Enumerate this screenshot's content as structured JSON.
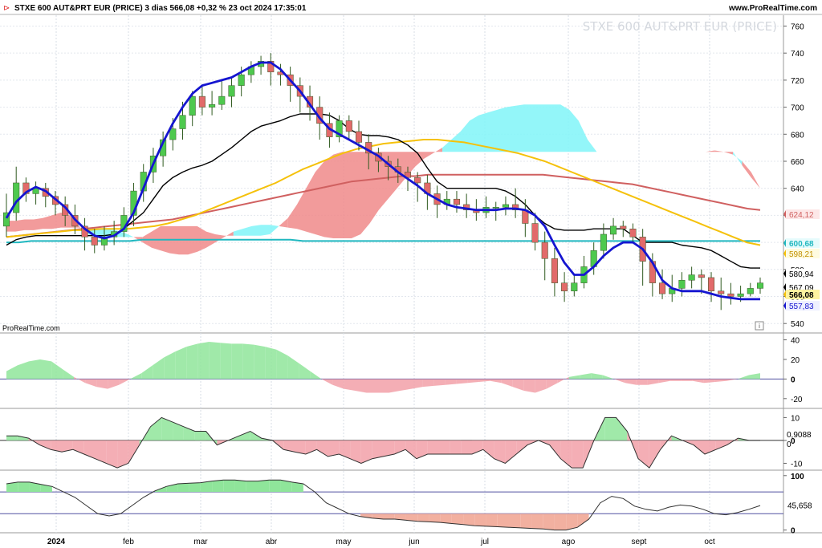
{
  "header": {
    "title": "STXE 600 AUT&PRT EUR (PRICE) 3 dias 566,08 +0,32 % 23 oct 2024 17:35:01",
    "site": "www.ProRealTime.com",
    "watermark": "STXE 600 AUT&PRT EUR (PRICE)",
    "brand": "ProRealTime.com"
  },
  "colors": {
    "up": "#4ec94e",
    "down": "#e26a6a",
    "wick": "#2f5a1f",
    "ma_blue": "#1515d0",
    "ma_black": "#000000",
    "ma_yellow": "#f5c10a",
    "ma_red": "#d06060",
    "cyan_line": "#20b8c0",
    "cloud_cyan": "#80f4f8",
    "cloud_red": "#f08a8a"
  },
  "chart_data": [
    {
      "type": "candlestick",
      "title": "STXE 600 AUT&PRT EUR (PRICE)",
      "timeframe": "3 dias",
      "x_labels": [
        "2024",
        "feb",
        "mar",
        "abr",
        "may",
        "jun",
        "jul",
        "ago",
        "sept",
        "oct"
      ],
      "ylim": [
        533,
        768
      ],
      "y_ticks": [
        540,
        560,
        580,
        600,
        620,
        640,
        660,
        680,
        700,
        720,
        740,
        760
      ],
      "close_badges": [
        {
          "label": "624,12",
          "value": 624.12,
          "color": "#d06060"
        },
        {
          "label": "600,68",
          "value": 600.68,
          "color": "#20b8c0"
        },
        {
          "label": "598,21",
          "value": 598.21,
          "color": "#f5c10a"
        },
        {
          "label": "580,94",
          "value": 580.94,
          "color": "#000000"
        },
        {
          "label": "567,09",
          "value": 567.09,
          "color": "#000000"
        },
        {
          "label": "566,08",
          "value": 566.08,
          "color": "#f5c10a"
        },
        {
          "label": "557,83",
          "value": 557.83,
          "color": "#1515d0"
        }
      ],
      "candles": [
        [
          612,
          622,
          604,
          636
        ],
        [
          622,
          644,
          616,
          656
        ],
        [
          644,
          636,
          630,
          648
        ],
        [
          636,
          640,
          628,
          645
        ],
        [
          640,
          634,
          626,
          644
        ],
        [
          634,
          628,
          620,
          638
        ],
        [
          628,
          620,
          612,
          634
        ],
        [
          620,
          612,
          606,
          628
        ],
        [
          612,
          604,
          594,
          618
        ],
        [
          604,
          598,
          592,
          610
        ],
        [
          598,
          604,
          594,
          612
        ],
        [
          604,
          608,
          598,
          616
        ],
        [
          608,
          620,
          604,
          626
        ],
        [
          620,
          638,
          612,
          644
        ],
        [
          638,
          652,
          630,
          658
        ],
        [
          652,
          664,
          644,
          670
        ],
        [
          664,
          676,
          656,
          682
        ],
        [
          676,
          684,
          668,
          692
        ],
        [
          684,
          694,
          676,
          704
        ],
        [
          694,
          708,
          686,
          712
        ],
        [
          708,
          700,
          694,
          716
        ],
        [
          700,
          702,
          694,
          712
        ],
        [
          702,
          708,
          698,
          720
        ],
        [
          708,
          716,
          700,
          722
        ],
        [
          716,
          724,
          708,
          730
        ],
        [
          724,
          730,
          718,
          734
        ],
        [
          730,
          734,
          724,
          738
        ],
        [
          734,
          726,
          716,
          740
        ],
        [
          726,
          724,
          716,
          732
        ],
        [
          724,
          716,
          704,
          730
        ],
        [
          716,
          708,
          696,
          722
        ],
        [
          708,
          700,
          690,
          716
        ],
        [
          700,
          688,
          676,
          708
        ],
        [
          688,
          678,
          670,
          696
        ],
        [
          678,
          690,
          674,
          694
        ],
        [
          690,
          682,
          676,
          694
        ],
        [
          682,
          674,
          668,
          690
        ],
        [
          674,
          666,
          654,
          680
        ],
        [
          666,
          660,
          652,
          670
        ],
        [
          660,
          656,
          646,
          664
        ],
        [
          656,
          652,
          644,
          662
        ],
        [
          652,
          648,
          638,
          656
        ],
        [
          648,
          644,
          630,
          652
        ],
        [
          644,
          636,
          624,
          650
        ],
        [
          636,
          628,
          618,
          642
        ],
        [
          628,
          632,
          624,
          638
        ],
        [
          632,
          628,
          622,
          638
        ],
        [
          628,
          624,
          618,
          636
        ],
        [
          624,
          622,
          616,
          632
        ],
        [
          622,
          626,
          618,
          634
        ],
        [
          626,
          626,
          616,
          630
        ],
        [
          626,
          628,
          620,
          634
        ],
        [
          628,
          624,
          618,
          640
        ],
        [
          624,
          614,
          604,
          632
        ],
        [
          614,
          600,
          594,
          622
        ],
        [
          600,
          588,
          572,
          608
        ],
        [
          588,
          570,
          560,
          596
        ],
        [
          570,
          564,
          556,
          578
        ],
        [
          564,
          570,
          560,
          576
        ],
        [
          570,
          582,
          566,
          590
        ],
        [
          582,
          594,
          576,
          600
        ],
        [
          594,
          606,
          588,
          614
        ],
        [
          606,
          612,
          602,
          618
        ],
        [
          612,
          610,
          604,
          616
        ],
        [
          610,
          604,
          600,
          614
        ],
        [
          604,
          586,
          568,
          610
        ],
        [
          586,
          570,
          560,
          592
        ],
        [
          570,
          562,
          558,
          580
        ],
        [
          562,
          566,
          556,
          576
        ],
        [
          566,
          572,
          560,
          578
        ],
        [
          572,
          576,
          566,
          582
        ],
        [
          576,
          574,
          562,
          580
        ],
        [
          574,
          564,
          556,
          578
        ],
        [
          564,
          562,
          550,
          574
        ],
        [
          562,
          560,
          554,
          570
        ],
        [
          560,
          562,
          556,
          568
        ],
        [
          562,
          566,
          560,
          570
        ],
        [
          566,
          570,
          562,
          574
        ]
      ],
      "series": [
        {
          "key": "ma_blue",
          "values": [
            618,
            630,
            637,
            641,
            638,
            632,
            626,
            617,
            610,
            605,
            603,
            605,
            610,
            622,
            640,
            658,
            674,
            688,
            700,
            710,
            716,
            718,
            720,
            722,
            726,
            730,
            733,
            733,
            728,
            720,
            712,
            702,
            692,
            684,
            680,
            676,
            672,
            668,
            664,
            658,
            652,
            647,
            642,
            636,
            632,
            628,
            626,
            625,
            624,
            624,
            624,
            625,
            625,
            624,
            620,
            612,
            598,
            585,
            576,
            576,
            582,
            590,
            596,
            600,
            600,
            595,
            585,
            572,
            566,
            564,
            564,
            564,
            562,
            560,
            559,
            558,
            558,
            558
          ]
        },
        {
          "key": "ma_black",
          "values": [
            598,
            602,
            604,
            605,
            605,
            605,
            605,
            605,
            605,
            605,
            605,
            606,
            610,
            616,
            622,
            632,
            642,
            648,
            652,
            655,
            657,
            660,
            665,
            670,
            676,
            682,
            686,
            688,
            690,
            693,
            695,
            695,
            695,
            694,
            690,
            684,
            680,
            679,
            679,
            678,
            676,
            672,
            666,
            655,
            645,
            640,
            640,
            640,
            640,
            640,
            640,
            638,
            634,
            628,
            620,
            614,
            610,
            609,
            609,
            609,
            610,
            610,
            610,
            610,
            605,
            600,
            600,
            600,
            600,
            598,
            597,
            596,
            594,
            590,
            586,
            582,
            581,
            581
          ]
        },
        {
          "key": "ma_yellow",
          "values": [
            604,
            605,
            606,
            607,
            608,
            609,
            609,
            610,
            610,
            610,
            611,
            612,
            614,
            617,
            620,
            624,
            628,
            632,
            636,
            640,
            644,
            649,
            654,
            658,
            662,
            666,
            669,
            671,
            673,
            674,
            675,
            676,
            676,
            675,
            674,
            672,
            670,
            668,
            666,
            663,
            660,
            656,
            652,
            648,
            644,
            640,
            636,
            632,
            628,
            624,
            620,
            616,
            612,
            608,
            604,
            600,
            598
          ]
        },
        {
          "key": "ma_red",
          "values": [
            604,
            605,
            606,
            607,
            608,
            609,
            610,
            611,
            612,
            613,
            614,
            615,
            616,
            617,
            619,
            621,
            623,
            625,
            627,
            629,
            631,
            633,
            635,
            637,
            639,
            641,
            643,
            645,
            646,
            647,
            648,
            649,
            649,
            650,
            650,
            650,
            650,
            650,
            650,
            650,
            650,
            650,
            650,
            649,
            648,
            647,
            646,
            645,
            644,
            643,
            641,
            639,
            637,
            635,
            633,
            631,
            629,
            627,
            625,
            624
          ]
        },
        {
          "key": "cyan_line",
          "values": [
            600,
            600,
            601,
            601,
            601,
            601,
            601,
            601,
            601,
            601,
            601,
            602,
            602,
            602,
            602,
            602,
            602,
            602,
            602,
            602,
            602,
            602,
            602,
            602,
            601,
            601,
            601,
            601,
            601,
            601,
            601,
            601,
            601,
            601,
            601,
            601,
            601,
            601,
            601,
            601,
            601,
            601,
            601,
            601,
            601,
            601,
            601,
            601,
            601,
            601,
            601,
            601,
            601,
            601,
            601,
            601,
            601,
            601,
            601,
            601,
            601,
            601
          ]
        }
      ],
      "cloud": {
        "a": [
          616,
          616,
          617,
          617,
          618,
          620,
          622,
          620,
          612,
          606,
          604,
          604,
          604,
          604,
          604,
          604,
          608,
          612,
          612,
          612,
          612,
          612,
          608,
          606,
          605,
          605,
          605,
          605,
          605,
          606,
          612,
          618,
          628,
          640,
          652,
          660,
          665,
          667,
          667,
          667,
          667,
          667,
          667,
          667,
          667,
          667,
          667,
          667,
          667,
          667,
          667,
          667,
          667,
          667,
          667,
          667,
          667,
          667,
          667,
          667,
          667,
          667,
          667,
          667,
          667,
          667,
          667,
          667,
          667,
          667,
          667,
          667,
          667,
          667,
          667,
          667,
          667,
          667,
          668,
          667,
          665,
          660,
          652,
          640
        ],
        "b": [
          608,
          608,
          609,
          609,
          610,
          610,
          611,
          611,
          611,
          611,
          610,
          610,
          609,
          607,
          604,
          600,
          596,
          594,
          592,
          591,
          591,
          593,
          596,
          600,
          604,
          608,
          610,
          612,
          613,
          613,
          612,
          611,
          610,
          608,
          606,
          604,
          603,
          603,
          603,
          606,
          614,
          624,
          632,
          640,
          648,
          656,
          662,
          666,
          670,
          676,
          682,
          690,
          694,
          696,
          698,
          700,
          701,
          702,
          702,
          702,
          702,
          702,
          698,
          690,
          676,
          667,
          667,
          667,
          667,
          667,
          667,
          667,
          667,
          667,
          667,
          667,
          667,
          667,
          667,
          667,
          667,
          657,
          648,
          640
        ]
      }
    },
    {
      "type": "area",
      "ylim": [
        -30,
        47
      ],
      "y_ticks": [
        40,
        20,
        0,
        -20
      ],
      "zero": 0,
      "values": [
        8,
        14,
        18,
        20,
        18,
        10,
        2,
        -4,
        -8,
        -10,
        -6,
        0,
        6,
        14,
        22,
        28,
        33,
        36,
        38,
        37,
        36,
        36,
        35,
        33,
        30,
        24,
        16,
        8,
        0,
        -6,
        -10,
        -12,
        -14,
        -14,
        -14,
        -12,
        -10,
        -8,
        -7,
        -6,
        -5,
        -4,
        -3,
        -2,
        -4,
        -8,
        -12,
        -14,
        -10,
        -4,
        2,
        4,
        6,
        4,
        0,
        -4,
        -6,
        -6,
        -4,
        -2,
        -2,
        -2,
        -4,
        -3,
        -2,
        0,
        4,
        6
      ]
    },
    {
      "type": "area",
      "ylim": [
        -13,
        14
      ],
      "y_ticks": [
        10,
        0,
        -10
      ],
      "zero": 0,
      "badges": [
        "0,9088",
        "0"
      ],
      "values": [
        2,
        2,
        1,
        -2,
        -4,
        -5,
        -4,
        -6,
        -8,
        -10,
        -12,
        -10,
        -2,
        6,
        10,
        8,
        6,
        4,
        4,
        -2,
        0,
        2,
        4,
        1,
        0,
        -4,
        -5,
        -6,
        -4,
        -7,
        -6,
        -8,
        -10,
        -8,
        -7,
        -6,
        -4,
        -8,
        -6,
        -6,
        -6,
        -6,
        -6,
        -4,
        -8,
        -10,
        -6,
        -2,
        0,
        -2,
        -8,
        -12,
        -12,
        0,
        10,
        10,
        4,
        -8,
        -12,
        -4,
        2,
        0,
        -2,
        -6,
        -4,
        -2,
        1,
        0,
        0
      ]
    },
    {
      "type": "line",
      "ylim": [
        -5,
        110
      ],
      "y_ticks": [
        100,
        0
      ],
      "badges": [
        "45,658"
      ],
      "levels": [
        70,
        30
      ],
      "values": [
        85,
        88,
        88,
        84,
        80,
        70,
        60,
        45,
        30,
        26,
        30,
        45,
        60,
        72,
        80,
        85,
        86,
        87,
        90,
        92,
        92,
        90,
        90,
        92,
        92,
        88,
        85,
        70,
        50,
        40,
        30,
        25,
        22,
        20,
        20,
        18,
        16,
        15,
        14,
        12,
        10,
        8,
        7,
        6,
        5,
        4,
        3,
        2,
        0,
        0,
        5,
        20,
        50,
        62,
        58,
        44,
        38,
        35,
        42,
        46,
        44,
        38,
        30,
        28,
        32,
        38,
        45
      ]
    }
  ]
}
